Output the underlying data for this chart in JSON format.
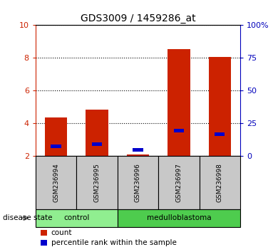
{
  "title": "GDS3009 / 1459286_at",
  "samples": [
    "GSM236994",
    "GSM236995",
    "GSM236996",
    "GSM236997",
    "GSM236998"
  ],
  "count_values": [
    4.35,
    4.85,
    2.1,
    8.55,
    8.05
  ],
  "percentile_values": [
    2.6,
    2.75,
    2.4,
    3.55,
    3.35
  ],
  "ylim_left": [
    2,
    10
  ],
  "ylim_right": [
    0,
    100
  ],
  "yticks_left": [
    2,
    4,
    6,
    8,
    10
  ],
  "yticks_right": [
    0,
    25,
    50,
    75,
    100
  ],
  "disease_groups": [
    {
      "label": "control",
      "indices": [
        0,
        1
      ],
      "color": "#90EE90"
    },
    {
      "label": "medulloblastoma",
      "indices": [
        2,
        3,
        4
      ],
      "color": "#4ECC4E"
    }
  ],
  "bar_color": "#CC2200",
  "percentile_color": "#0000CC",
  "bar_width": 0.55,
  "background_color": "#FFFFFF",
  "label_area_color": "#C8C8C8",
  "left_axis_color": "#CC2200",
  "right_axis_color": "#0000BB",
  "legend_items": [
    {
      "label": "count",
      "color": "#CC2200"
    },
    {
      "label": "percentile rank within the sample",
      "color": "#0000CC"
    }
  ],
  "disease_state_label": "disease state"
}
